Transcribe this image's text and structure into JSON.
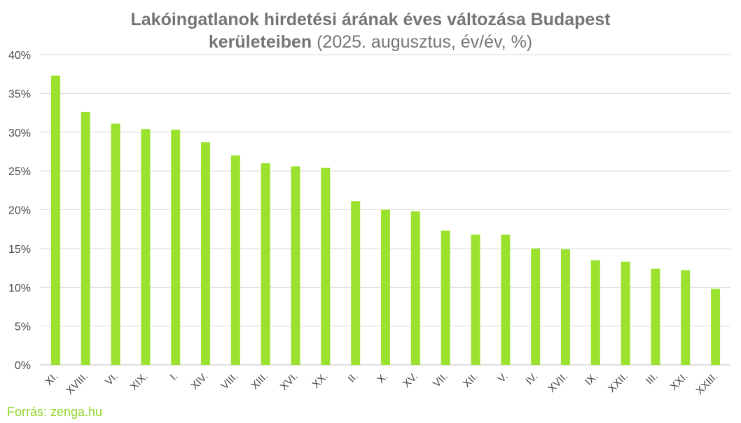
{
  "title": {
    "line1": "Lakóingatlanok hirdetési árának éves változása Budapest",
    "line2_bold": "kerületeiben",
    "line2_rest": " (2025. augusztus, év/év, %)"
  },
  "source": "Forrás: zenga.hu",
  "colors": {
    "bar": "#9be22e",
    "grid": "#d9d9d9",
    "title": "#757575",
    "source": "#8fd628"
  },
  "chart_data": {
    "type": "bar",
    "categories": [
      "XI.",
      "XVIII.",
      "VI.",
      "XIX.",
      "I.",
      "XIV.",
      "VIII.",
      "XIII.",
      "XVI.",
      "XX.",
      "II.",
      "X.",
      "XV.",
      "VII.",
      "XII.",
      "V.",
      "IV.",
      "XVII.",
      "IX.",
      "XXII.",
      "III.",
      "XXI.",
      "XXIII."
    ],
    "values": [
      37.3,
      32.6,
      31.1,
      30.4,
      30.3,
      28.7,
      27.0,
      26.0,
      25.6,
      25.4,
      21.1,
      20.0,
      19.8,
      17.3,
      16.8,
      16.8,
      15.0,
      14.9,
      13.5,
      13.3,
      12.4,
      12.2,
      9.8
    ],
    "title": "Lakóingatlanok hirdetési árának éves változása Budapest kerületeiben (2025. augusztus, év/év, %)",
    "xlabel": "",
    "ylabel": "",
    "ylim": [
      0,
      40
    ],
    "yticks": [
      "0%",
      "5%",
      "10%",
      "15%",
      "20%",
      "25%",
      "30%",
      "35%",
      "40%"
    ],
    "grid": true,
    "legend": "none"
  }
}
